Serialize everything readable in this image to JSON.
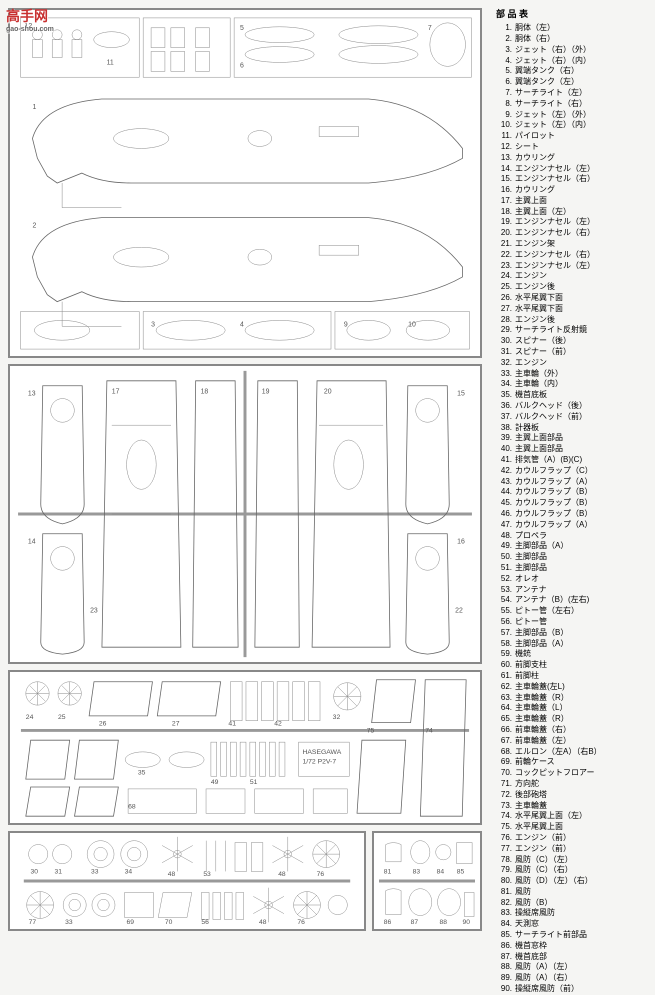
{
  "watermark": {
    "main": "高手网",
    "sub": "gao-shou.com"
  },
  "parts_header": "部 品 表",
  "parts": [
    {
      "n": 1,
      "name": "胴体（左）"
    },
    {
      "n": 2,
      "name": "胴体（右）"
    },
    {
      "n": 3,
      "name": "ジェット（右）（外）"
    },
    {
      "n": 4,
      "name": "ジェット（右）（内）"
    },
    {
      "n": 5,
      "name": "翼端タンク（右）"
    },
    {
      "n": 6,
      "name": "翼端タンク（左）"
    },
    {
      "n": 7,
      "name": "サーチライト（左）"
    },
    {
      "n": 8,
      "name": "サーチライト（右）"
    },
    {
      "n": 9,
      "name": "ジェット（左）（外）"
    },
    {
      "n": 10,
      "name": "ジェット（左）（内）"
    },
    {
      "n": 11,
      "name": "パイロット"
    },
    {
      "n": 12,
      "name": "シート"
    },
    {
      "n": 13,
      "name": "カウリング"
    },
    {
      "n": 14,
      "name": "エンジンナセル（左）"
    },
    {
      "n": 15,
      "name": "エンジンナセル（右）"
    },
    {
      "n": 16,
      "name": "カウリング"
    },
    {
      "n": 17,
      "name": "主翼上面"
    },
    {
      "n": 18,
      "name": "主翼上面（左）"
    },
    {
      "n": 19,
      "name": "エンジンナセル（左）"
    },
    {
      "n": 20,
      "name": "エンジンナセル（右）"
    },
    {
      "n": 21,
      "name": "エンジン架"
    },
    {
      "n": 22,
      "name": "エンジンナセル（右）"
    },
    {
      "n": 23,
      "name": "エンジンナセル（左）"
    },
    {
      "n": 24,
      "name": "エンジン"
    },
    {
      "n": 25,
      "name": "エンジン後"
    },
    {
      "n": 26,
      "name": "水平尾翼下面"
    },
    {
      "n": 27,
      "name": "水平尾翼下面"
    },
    {
      "n": 28,
      "name": "エンジン後"
    },
    {
      "n": 29,
      "name": "サーチライト反射鏡"
    },
    {
      "n": 30,
      "name": "スピナー（後）"
    },
    {
      "n": 31,
      "name": "スピナー（前）"
    },
    {
      "n": 32,
      "name": "エンジン"
    },
    {
      "n": 33,
      "name": "主車輪（外）"
    },
    {
      "n": 34,
      "name": "主車輪（内）"
    },
    {
      "n": 35,
      "name": "機首底板"
    },
    {
      "n": 36,
      "name": "バルクヘッド（後）"
    },
    {
      "n": 37,
      "name": "バルクヘッド（前）"
    },
    {
      "n": 38,
      "name": "計器板"
    },
    {
      "n": 39,
      "name": "主翼上面部品"
    },
    {
      "n": 40,
      "name": "主翼上面部品"
    },
    {
      "n": 41,
      "name": "排気管（A）(B)(C)"
    },
    {
      "n": 42,
      "name": "カウルフラップ（C）"
    },
    {
      "n": 43,
      "name": "カウルフラップ（A）"
    },
    {
      "n": 44,
      "name": "カウルフラップ（B）"
    },
    {
      "n": 45,
      "name": "カウルフラップ（B）"
    },
    {
      "n": 46,
      "name": "カウルフラップ（B）"
    },
    {
      "n": 47,
      "name": "カウルフラップ（A）"
    },
    {
      "n": 48,
      "name": "プロペラ"
    },
    {
      "n": 49,
      "name": "主脚部品（A）"
    },
    {
      "n": 50,
      "name": "主脚部品"
    },
    {
      "n": 51,
      "name": "主脚部品"
    },
    {
      "n": 52,
      "name": "オレオ"
    },
    {
      "n": 53,
      "name": "アンテナ"
    },
    {
      "n": 54,
      "name": "アンテナ（B）(左右)"
    },
    {
      "n": 55,
      "name": "ピトー管（左右）"
    },
    {
      "n": 56,
      "name": "ピトー管"
    },
    {
      "n": 57,
      "name": "主脚部品（B）"
    },
    {
      "n": 58,
      "name": "主脚部品（A）"
    },
    {
      "n": 59,
      "name": "機銃"
    },
    {
      "n": 60,
      "name": "前脚支柱"
    },
    {
      "n": 61,
      "name": "前脚柱"
    },
    {
      "n": 62,
      "name": "主車輪蓋(左L)"
    },
    {
      "n": 63,
      "name": "主車輪蓋（R）"
    },
    {
      "n": 64,
      "name": "主車輪蓋（L）"
    },
    {
      "n": 65,
      "name": "主車輪蓋（R）"
    },
    {
      "n": 66,
      "name": "前車輪蓋（右）"
    },
    {
      "n": 67,
      "name": "前車輪蓋（左）"
    },
    {
      "n": 68,
      "name": "エルロン（左A）（右B）"
    },
    {
      "n": 69,
      "name": "前輪ケース"
    },
    {
      "n": 70,
      "name": "コックピットフロアー"
    },
    {
      "n": 71,
      "name": "方向舵"
    },
    {
      "n": 72,
      "name": "後部砲塔"
    },
    {
      "n": 73,
      "name": "主車輪蓋"
    },
    {
      "n": 74,
      "name": "水平尾翼上面（左）"
    },
    {
      "n": 75,
      "name": "水平尾翼上面"
    },
    {
      "n": 76,
      "name": "エンジン（前）"
    },
    {
      "n": 77,
      "name": "エンジン（前）"
    },
    {
      "n": 78,
      "name": "風防（C）（左）"
    },
    {
      "n": 79,
      "name": "風防（C）（右）"
    },
    {
      "n": 80,
      "name": "風防（D）（左）（右）"
    },
    {
      "n": 81,
      "name": "風防"
    },
    {
      "n": 82,
      "name": "風防（B）"
    },
    {
      "n": 83,
      "name": "操縦席風防"
    },
    {
      "n": 84,
      "name": "天測窓"
    },
    {
      "n": 85,
      "name": "サーチライト前部品"
    },
    {
      "n": 86,
      "name": "機首窓枠"
    },
    {
      "n": 87,
      "name": "機首底部"
    },
    {
      "n": 88,
      "name": "風防（A）（左）"
    },
    {
      "n": 89,
      "name": "風防（A）（右）"
    },
    {
      "n": 90,
      "name": "操縦席風防（前）"
    }
  ],
  "diagrams": {
    "bg": "#ffffff",
    "stroke": "#666666",
    "frame_stroke": "#888888"
  }
}
